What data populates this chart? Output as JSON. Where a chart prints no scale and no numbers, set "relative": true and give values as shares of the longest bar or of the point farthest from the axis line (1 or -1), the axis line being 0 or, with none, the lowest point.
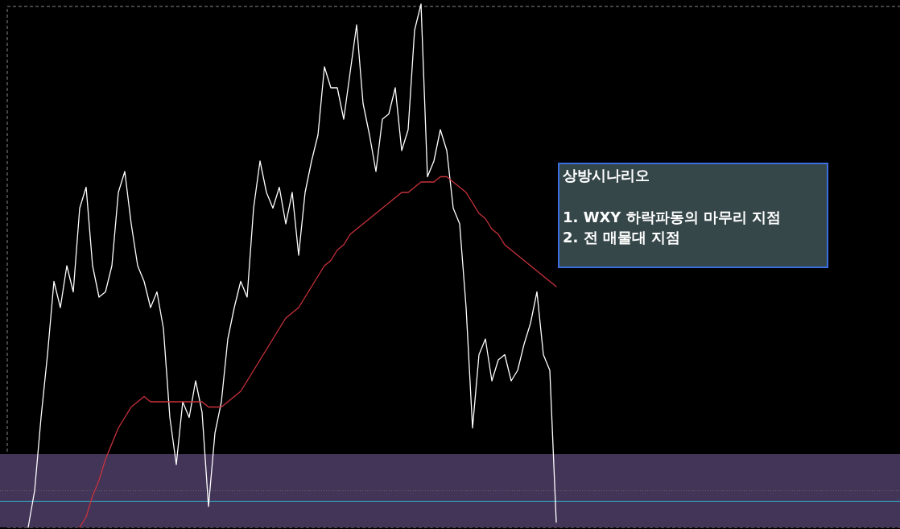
{
  "chart_data": {
    "type": "line",
    "relative": true,
    "categories": [
      null,
      null,
      null,
      null,
      null,
      null,
      null,
      null,
      null,
      null,
      null,
      null,
      null,
      null,
      null,
      null,
      null,
      null,
      null,
      null,
      null,
      null,
      null,
      null,
      null,
      null,
      null,
      null,
      null,
      null,
      null,
      null,
      null,
      null,
      null,
      null,
      null,
      null,
      null,
      null,
      null,
      null,
      null,
      null,
      null,
      null,
      null,
      null,
      null,
      null,
      null,
      null,
      null,
      null,
      null,
      null,
      null,
      null,
      null,
      null,
      null,
      null,
      null,
      null,
      null,
      null,
      null,
      null,
      null,
      null,
      null,
      null,
      null,
      null,
      null,
      null,
      null,
      null,
      null,
      null,
      null,
      null,
      null
    ],
    "series": [
      {
        "color": "#ffffff",
        "values": [
          0,
          0.07,
          0.21,
          0.33,
          0.47,
          0.42,
          0.5,
          0.45,
          0.61,
          0.65,
          0.5,
          0.44,
          0.45,
          0.5,
          0.64,
          0.68,
          0.58,
          0.5,
          0.47,
          0.42,
          0.45,
          0.38,
          0.21,
          0.12,
          0.24,
          0.21,
          0.28,
          0.22,
          0.04,
          0.18,
          0.24,
          0.36,
          0.42,
          0.47,
          0.44,
          0.61,
          0.7,
          0.64,
          0.61,
          0.65,
          0.58,
          0.64,
          0.52,
          0.64,
          0.7,
          0.75,
          0.88,
          0.84,
          0.84,
          0.78,
          0.87,
          0.96,
          0.81,
          0.75,
          0.68,
          0.78,
          0.79,
          0.84,
          0.72,
          0.76,
          0.95,
          1.0,
          0.67,
          0.7,
          0.76,
          0.72,
          0.61,
          0.58,
          0.42,
          0.19,
          0.33,
          0.36,
          0.28,
          0.32,
          0.33,
          0.28,
          0.3,
          0.35,
          0.39,
          0.45,
          0.33,
          0.3,
          0.01
        ]
      },
      {
        "color": "#c8323c",
        "values": [
          null,
          null,
          null,
          null,
          null,
          null,
          null,
          null,
          0,
          0.02,
          0.06,
          0.09,
          0.13,
          0.16,
          0.19,
          0.21,
          0.23,
          0.24,
          0.25,
          0.24,
          0.24,
          0.24,
          0.24,
          0.24,
          0.24,
          0.24,
          0.24,
          0.24,
          0.23,
          0.23,
          0.23,
          0.24,
          0.25,
          0.26,
          0.28,
          0.3,
          0.32,
          0.34,
          0.36,
          0.38,
          0.4,
          0.41,
          0.42,
          0.44,
          0.46,
          0.48,
          0.5,
          0.51,
          0.53,
          0.54,
          0.56,
          0.57,
          0.58,
          0.59,
          0.6,
          0.61,
          0.62,
          0.63,
          0.64,
          0.64,
          0.65,
          0.66,
          0.66,
          0.66,
          0.67,
          0.67,
          0.66,
          0.65,
          0.64,
          0.62,
          0.6,
          0.59,
          0.57,
          0.56,
          0.54,
          0.53,
          0.52,
          0.51,
          0.5,
          0.49,
          0.48,
          0.47,
          0.46
        ]
      }
    ],
    "bands": [
      {
        "axis": "y",
        "from": 0,
        "to": 0.14,
        "color": "#433558"
      }
    ],
    "ref_lines": [
      {
        "axis": "y",
        "value": 0.05,
        "color": "#2fb8d8",
        "line_style": "solid"
      },
      {
        "axis": "y",
        "value": 0.07,
        "color": "#666666",
        "line_style": "dotted"
      }
    ],
    "annotations": [
      "상방시나리오",
      "1. WXY 하락파동의 마무리 지점",
      "2. 전 매물대 지점"
    ]
  }
}
